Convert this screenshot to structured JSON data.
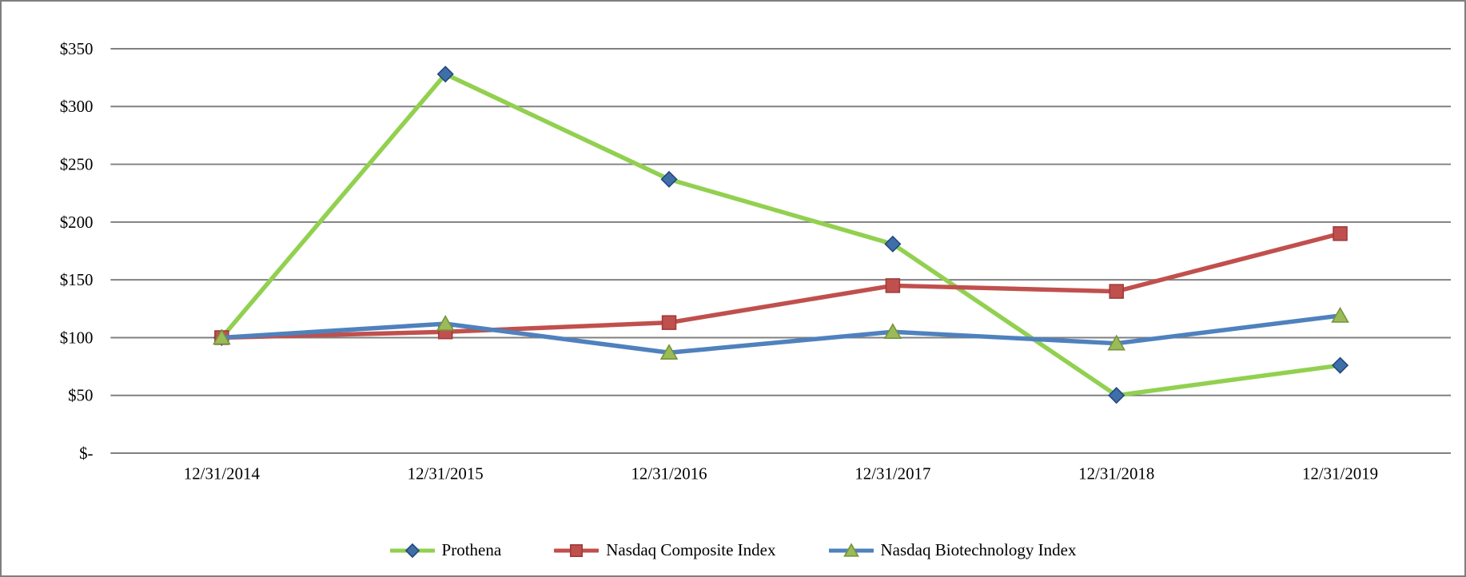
{
  "figure": {
    "background": "#FFFFFF",
    "border_color": "#7F7F7F"
  },
  "chart_data": {
    "type": "line",
    "title": "",
    "categories": [
      "12/31/2014",
      "12/31/2015",
      "12/31/2016",
      "12/31/2017",
      "12/31/2018",
      "12/31/2019"
    ],
    "series": [
      {
        "name": "Prothena",
        "values": [
          100,
          328,
          237,
          181,
          50,
          76
        ],
        "line_color": "#92D050",
        "marker": "diamond",
        "marker_fill": "#3E6FA8",
        "marker_stroke": "#24477C"
      },
      {
        "name": "Nasdaq Composite Index",
        "values": [
          100,
          105,
          113,
          145,
          140,
          190
        ],
        "line_color": "#C0504D",
        "marker": "square",
        "marker_fill": "#C0504D",
        "marker_stroke": "#9E3B39"
      },
      {
        "name": "Nasdaq Biotechnology Index",
        "values": [
          100,
          112,
          87,
          105,
          95,
          119
        ],
        "line_color": "#4F81BD",
        "marker": "triangle",
        "marker_fill": "#9BBB59",
        "marker_stroke": "#77933C"
      }
    ],
    "y_axis": {
      "min": 0,
      "max": 350,
      "ticks": [
        {
          "label": "$350",
          "value": 350
        },
        {
          "label": "$300",
          "value": 300
        },
        {
          "label": "$250",
          "value": 250
        },
        {
          "label": "$200",
          "value": 200
        },
        {
          "label": "$150",
          "value": 150
        },
        {
          "label": "$100",
          "value": 100
        },
        {
          "label": "$50",
          "value": 50
        },
        {
          "label": "$-",
          "value": 0
        }
      ]
    },
    "gridline_color": "#808080",
    "grid": true,
    "legend_position": "bottom"
  }
}
